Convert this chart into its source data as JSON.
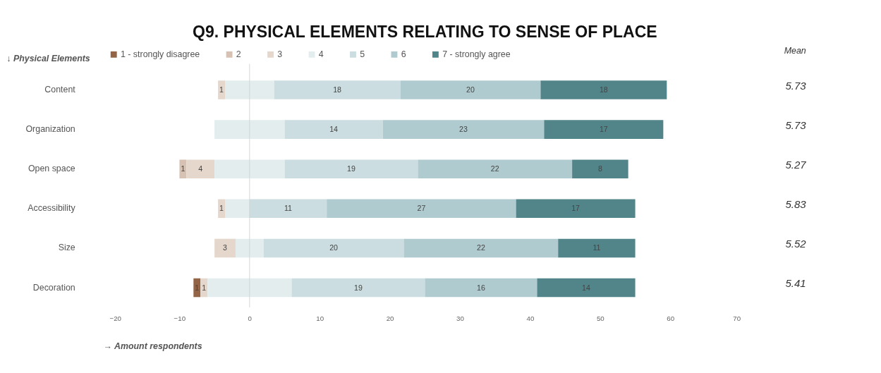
{
  "chart_data": {
    "type": "bar",
    "orientation": "horizontal",
    "title": "Q9. PHYSICAL ELEMENTS RELATING TO SENSE OF PLACE",
    "ylabel": "↓ Physical Elements",
    "xlabel": "→ Amount respondents",
    "categories": [
      "Content",
      "Organization",
      "Open space",
      "Accessibility",
      "Size",
      "Decoration"
    ],
    "series": [
      {
        "name": "1 - strongly disagree",
        "color": "#946446",
        "values": [
          null,
          null,
          null,
          null,
          null,
          1
        ],
        "base": [
          null,
          null,
          null,
          null,
          null,
          -8
        ],
        "value_labels": [
          null,
          null,
          null,
          null,
          null,
          "1"
        ]
      },
      {
        "name": "2",
        "color": "#d6c1b2",
        "values": [
          null,
          null,
          1,
          null,
          null,
          null
        ],
        "base": [
          null,
          null,
          -10,
          null,
          null,
          null
        ],
        "value_labels": [
          null,
          null,
          "1",
          null,
          null,
          null
        ]
      },
      {
        "name": "3",
        "color": "#e5d7cc",
        "values": [
          1,
          null,
          4,
          1,
          3,
          1
        ],
        "base": [
          -4.5,
          null,
          -9,
          -4.5,
          -5,
          -7
        ],
        "value_labels": [
          "1",
          null,
          "4",
          "1",
          "3",
          "1"
        ]
      },
      {
        "name": "4",
        "color": "#e3eded",
        "values": [
          7,
          10,
          10,
          3.5,
          4,
          12
        ],
        "base": [
          -3.5,
          -5,
          -5,
          -3.5,
          -2,
          -6
        ],
        "value_labels": [
          null,
          null,
          null,
          null,
          null,
          null
        ]
      },
      {
        "name": "5",
        "color": "#cbdde0",
        "values": [
          18,
          14,
          19,
          11,
          20,
          19
        ],
        "base": [
          3.5,
          5,
          5,
          0,
          2,
          6
        ],
        "value_labels": [
          "18",
          "14",
          "19",
          "11",
          "20",
          "19"
        ]
      },
      {
        "name": "6",
        "color": "#b0cbcf",
        "values": [
          20,
          23,
          22,
          27,
          22,
          16
        ],
        "base": [
          21.5,
          19,
          24,
          11,
          22,
          25
        ],
        "value_labels": [
          "20",
          "23",
          "22",
          "27",
          "22",
          "16"
        ]
      },
      {
        "name": "7 - strongly agree",
        "color": "#52858a",
        "values": [
          18,
          17,
          8,
          17,
          11,
          14
        ],
        "base": [
          41.5,
          42,
          46,
          38,
          44,
          41
        ],
        "value_labels": [
          "18",
          "17",
          "8",
          "17",
          "11",
          "14"
        ]
      }
    ],
    "xlim": [
      -20,
      70
    ],
    "xticks": [
      -20,
      -10,
      0,
      10,
      20,
      30,
      40,
      50,
      60,
      70
    ],
    "ref_lines": [
      {
        "axis": "x",
        "value": 0,
        "color": "#d0d0d0"
      }
    ],
    "grid": false,
    "legend": "top",
    "annotations": [
      "Mean",
      "5.73",
      "5.73",
      "5.27",
      "5.83",
      "5.52",
      "5.41"
    ]
  }
}
